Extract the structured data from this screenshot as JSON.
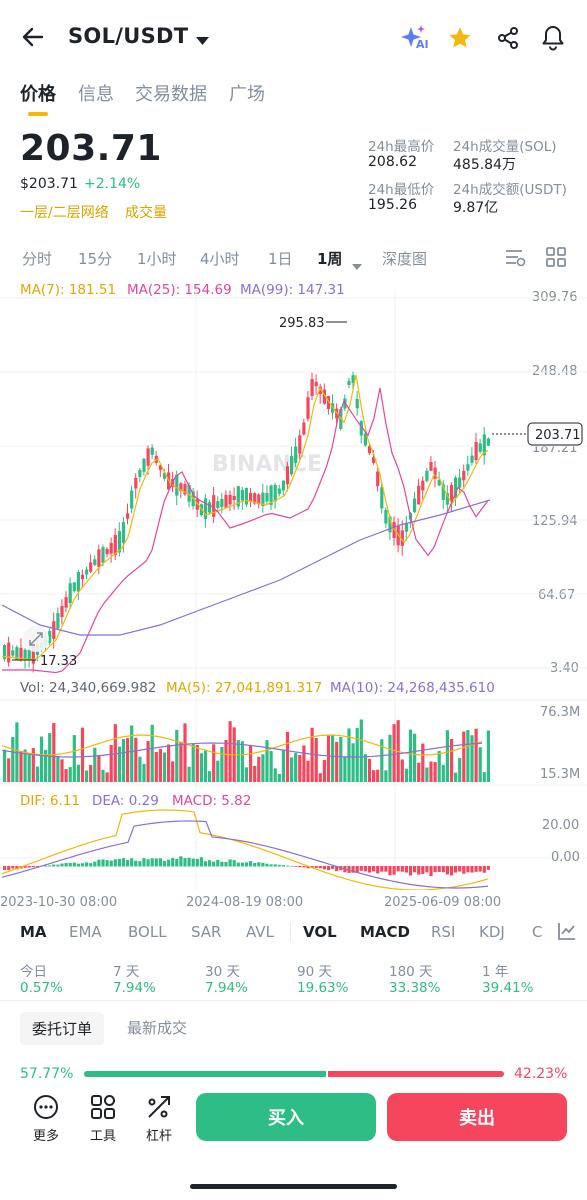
{
  "header": {
    "pair": "SOL/USDT",
    "ai_badge": "AI",
    "icons": [
      "back-arrow-icon",
      "dropdown-caret-icon",
      "ai-sparkle-icon",
      "star-icon",
      "share-icon",
      "bell-icon"
    ]
  },
  "tabs": [
    {
      "label": "价格",
      "active": true
    },
    {
      "label": "信息",
      "active": false
    },
    {
      "label": "交易数据",
      "active": false
    },
    {
      "label": "广场",
      "active": false
    }
  ],
  "price": {
    "last": "203.71",
    "usd": "$203.71",
    "change": "+2.14%",
    "tag1": "一层/二层网络",
    "tag2": "成交量"
  },
  "stats": {
    "high_label": "24h最高价",
    "high": "208.62",
    "vol_sol_label": "24h成交量(SOL)",
    "vol_sol": "485.84万",
    "low_label": "24h最低价",
    "low": "195.26",
    "vol_usdt_label": "24h成交额(USDT)",
    "vol_usdt": "9.87亿"
  },
  "timeframes": [
    "分时",
    "15分",
    "1小时",
    "4小时",
    "1日",
    "1周",
    "深度图"
  ],
  "active_timeframe": "1周",
  "ma": {
    "ma7": "MA(7): 181.51",
    "ma25": "MA(25): 154.69",
    "ma99": "MA(99): 147.31"
  },
  "price_axis": [
    "309.76",
    "248.48",
    "187.21",
    "125.94",
    "64.67",
    "3.40"
  ],
  "price_tag": "203.71",
  "high_marker": "295.83",
  "low_marker": "17.33",
  "watermark": "BINANCE",
  "volume": {
    "vol": "Vol: 24,340,669.982",
    "ma5": "MA(5): 27,041,891.317",
    "ma10": "MA(10): 24,268,435.610",
    "axis_top": "76.3M",
    "axis_bottom": "15.3M"
  },
  "macd": {
    "dif": "DIF: 6.11",
    "dea": "DEA: 0.29",
    "macd": "MACD: 5.82",
    "axis_top": "20.00",
    "axis_mid": "0.00"
  },
  "date_axis": [
    "2023-10-30 08:00",
    "2024-08-19 08:00",
    "2025-06-09 08:00"
  ],
  "indicators": [
    "MA",
    "EMA",
    "BOLL",
    "SAR",
    "AVL",
    "VOL",
    "MACD",
    "RSI",
    "KDJ",
    "C"
  ],
  "performance": [
    {
      "label": "今日",
      "value": "0.57%"
    },
    {
      "label": "7 天",
      "value": "7.94%"
    },
    {
      "label": "30 天",
      "value": "7.94%"
    },
    {
      "label": "90 天",
      "value": "19.63%"
    },
    {
      "label": "180 天",
      "value": "33.38%"
    },
    {
      "label": "1 年",
      "value": "39.41%"
    }
  ],
  "orderbook_tabs": [
    "委托订单",
    "最新成交"
  ],
  "depth_ratio": {
    "buy": "57.77%",
    "sell": "42.23%",
    "buy_fraction": 0.5777
  },
  "bottom": {
    "tools": [
      "更多",
      "工具",
      "杠杆"
    ],
    "buy": "买入",
    "sell": "卖出"
  },
  "colors": {
    "up": "#2ebd85",
    "down": "#f6465d",
    "accent": "#f0b90b",
    "ma7": "#f0b90b",
    "ma25": "#e0479e",
    "ma99": "#8b6fd1"
  }
}
